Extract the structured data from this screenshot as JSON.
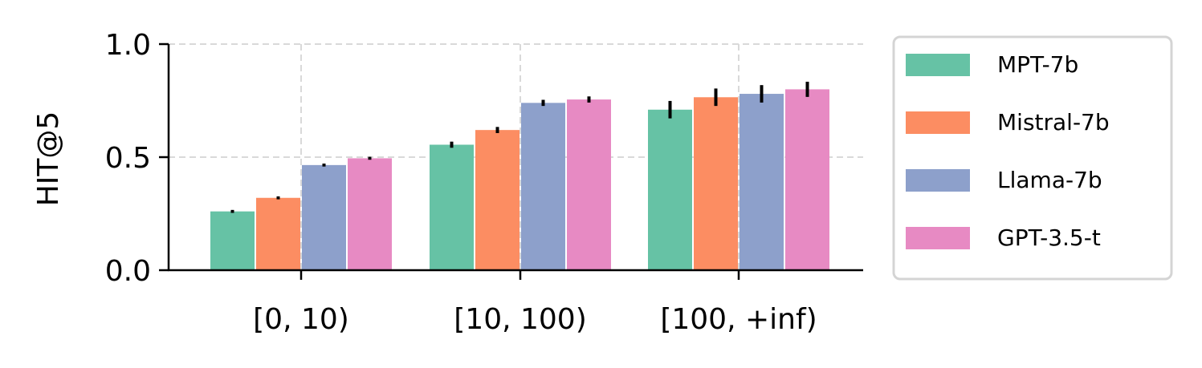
{
  "chart_data": {
    "type": "bar",
    "ylabel": "HIT@5",
    "xlabel": "",
    "ylim": [
      0,
      1
    ],
    "yticks": [
      "0.0",
      "0.5",
      "1.0"
    ],
    "categories": [
      "[0, 10)",
      "[10, 100)",
      "[100, +inf)"
    ],
    "grid": true,
    "legend_position": "outside-right",
    "series": [
      {
        "name": "MPT-7b",
        "color": "#66c2a5",
        "values": [
          0.26,
          0.555,
          0.71
        ],
        "errors": [
          0.003,
          0.01,
          0.035
        ]
      },
      {
        "name": "Mistral-7b",
        "color": "#fc8d62",
        "values": [
          0.32,
          0.62,
          0.765
        ],
        "errors": [
          0.003,
          0.01,
          0.035
        ]
      },
      {
        "name": "Llama-7b",
        "color": "#8da0cb",
        "values": [
          0.465,
          0.74,
          0.78
        ],
        "errors": [
          0.003,
          0.01,
          0.035
        ]
      },
      {
        "name": "GPT-3.5-t",
        "color": "#e78ac3",
        "values": [
          0.495,
          0.755,
          0.8
        ],
        "errors": [
          0.003,
          0.01,
          0.03
        ]
      }
    ]
  }
}
